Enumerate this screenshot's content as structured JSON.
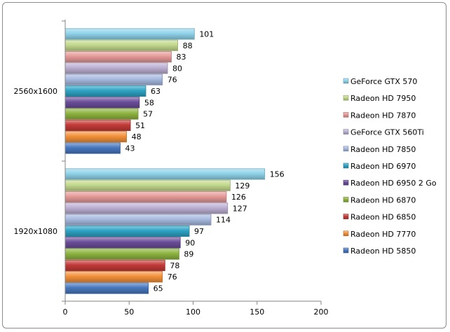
{
  "chart_data": {
    "type": "bar",
    "orientation": "horizontal",
    "categories": [
      "2560x1600",
      "1920x1080"
    ],
    "series": [
      {
        "name": "GeForce GTX 570",
        "values": [
          101,
          156
        ],
        "color": "#8fd3ea"
      },
      {
        "name": "Radeon HD 7950",
        "values": [
          88,
          129
        ],
        "color": "#c3d98c"
      },
      {
        "name": "Radeon HD 7870",
        "values": [
          83,
          126
        ],
        "color": "#e59a98"
      },
      {
        "name": "GeForce GTX 560Ti",
        "values": [
          80,
          127
        ],
        "color": "#bcb0d2"
      },
      {
        "name": "Radeon HD 7850",
        "values": [
          76,
          114
        ],
        "color": "#a7b9df"
      },
      {
        "name": "Radeon HD 6970",
        "values": [
          63,
          97
        ],
        "color": "#2ea4c4"
      },
      {
        "name": "Radeon HD 6950 2 Go",
        "values": [
          58,
          90
        ],
        "color": "#6b4d9a"
      },
      {
        "name": "Radeon HD 6870",
        "values": [
          57,
          89
        ],
        "color": "#8db43f"
      },
      {
        "name": "Radeon HD 6850",
        "values": [
          51,
          78
        ],
        "color": "#c43b38"
      },
      {
        "name": "Radeon HD 7770",
        "values": [
          48,
          76
        ],
        "color": "#f3913a"
      },
      {
        "name": "Radeon HD 5850",
        "values": [
          43,
          65
        ],
        "color": "#4877be"
      }
    ],
    "xlim": [
      0,
      200
    ],
    "xticks": [
      0,
      50,
      100,
      150,
      200
    ],
    "grid": false,
    "legend": "right",
    "data_labels": true
  }
}
